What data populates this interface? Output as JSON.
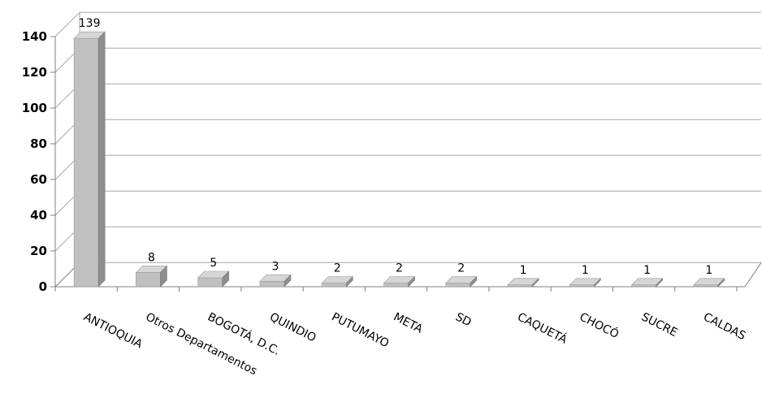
{
  "chart_data": {
    "type": "bar",
    "categories": [
      "ANTIOQUIA",
      "Otros Departamentos",
      "BOGOTÁ, D.C.",
      "QUINDIO",
      "PUTUMAYO",
      "META",
      "SD",
      "CAQUETÁ",
      "CHOCÓ",
      "SUCRE",
      "CALDAS"
    ],
    "values": [
      139,
      8,
      5,
      3,
      2,
      2,
      2,
      1,
      1,
      1,
      1
    ],
    "data_labels": [
      "139",
      "8",
      "5",
      "3",
      "2",
      "2",
      "2",
      "1",
      "1",
      "1",
      "1"
    ],
    "yticks": [
      "0",
      "20",
      "40",
      "60",
      "80",
      "100",
      "120",
      "140"
    ],
    "ylim": [
      0,
      140
    ],
    "grid": true,
    "style": "3d-column",
    "bar_color": "#c0c0c0"
  }
}
